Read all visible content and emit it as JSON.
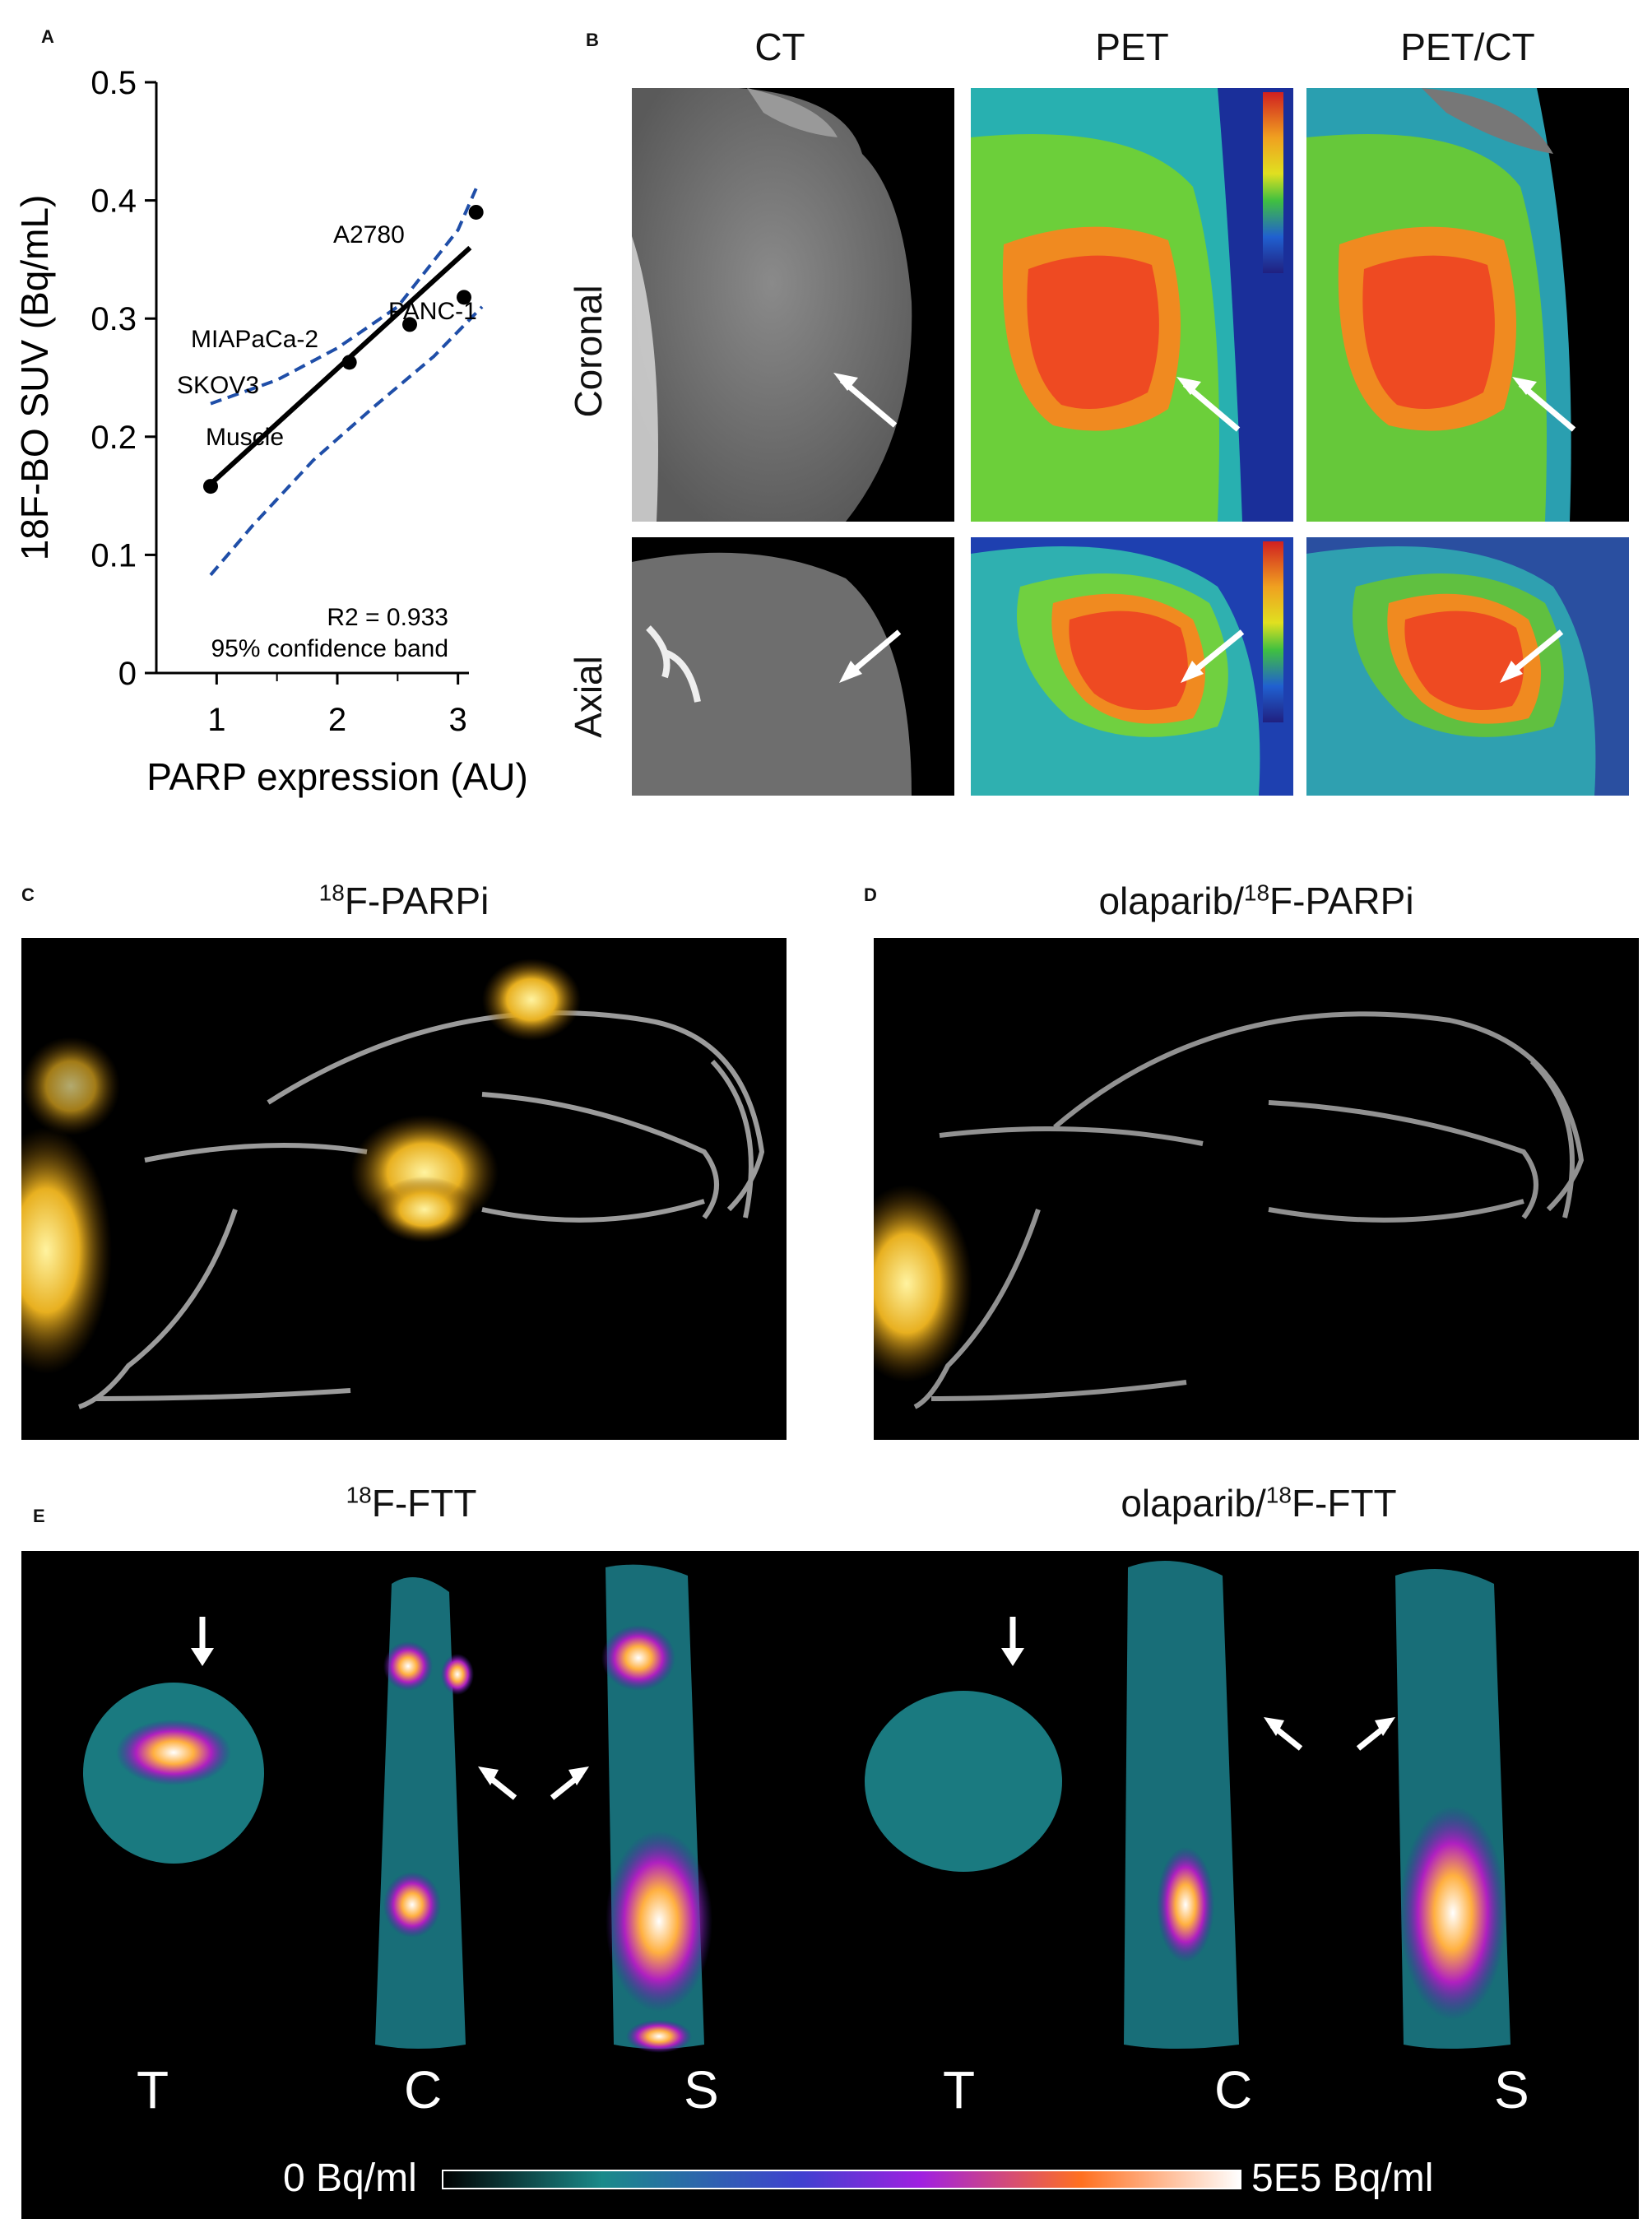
{
  "panels": {
    "A": {
      "letter": "A",
      "chart_data": {
        "type": "scatter",
        "xlabel": "PARP expression (AU)",
        "ylabel": "18F-BO SUV (Bq/mL)",
        "xlim": [
          0.5,
          3.5
        ],
        "ylim": [
          0,
          0.5
        ],
        "xticks": [
          1,
          2,
          3
        ],
        "yticks": [
          0,
          0.1,
          0.2,
          0.3,
          0.4,
          0.5
        ],
        "points": [
          {
            "label": "Muscle",
            "x": 0.95,
            "y": 0.158
          },
          {
            "label": "SKOV3",
            "x": 2.1,
            "y": 0.263
          },
          {
            "label": "MIAPaCa-2",
            "x": 2.6,
            "y": 0.295
          },
          {
            "label": "PANC-1",
            "x": 3.05,
            "y": 0.318
          },
          {
            "label": "A2780",
            "x": 3.15,
            "y": 0.39
          }
        ],
        "fit_line": {
          "x": [
            0.95,
            3.1
          ],
          "y": [
            0.16,
            0.36
          ]
        },
        "confidence_band": {
          "upper": {
            "x": [
              0.95,
              1.5,
              2.0,
              2.5,
              3.0,
              3.15
            ],
            "y": [
              0.228,
              0.248,
              0.275,
              0.31,
              0.375,
              0.41
            ]
          },
          "lower": {
            "x": [
              0.95,
              1.3,
              1.8,
              2.3,
              2.8,
              3.2
            ],
            "y": [
              0.083,
              0.125,
              0.18,
              0.225,
              0.268,
              0.31
            ]
          }
        },
        "annotations": [
          "R2 = 0.933",
          "95% confidence band"
        ]
      }
    },
    "B": {
      "letter": "B",
      "columns": [
        "CT",
        "PET",
        "PET/CT"
      ],
      "rows": [
        "Coronal",
        "Axial"
      ]
    },
    "C": {
      "letter": "C",
      "title_sup": "18",
      "title_rest": "F-PARPi"
    },
    "D": {
      "letter": "D",
      "title_pre": "olaparib/",
      "title_sup": "18",
      "title_rest": "F-PARPi"
    },
    "E": {
      "letter": "E",
      "left_title_sup": "18",
      "left_title_rest": "F-FTT",
      "right_title_pre": "olaparib/",
      "right_title_sup": "18",
      "right_title_rest": "F-FTT",
      "view_labels": [
        "T",
        "C",
        "S",
        "T",
        "C",
        "S"
      ],
      "scale_min": "0 Bq/ml",
      "scale_max": "5E5 Bq/ml"
    }
  }
}
